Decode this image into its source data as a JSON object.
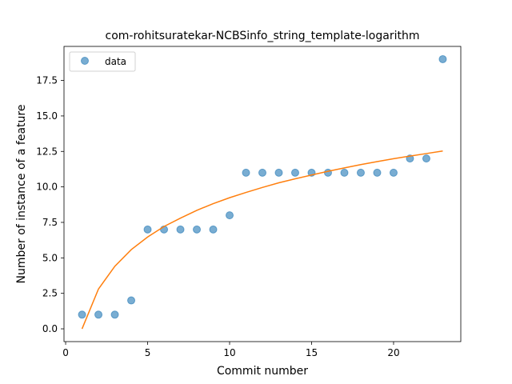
{
  "chart_data": {
    "type": "scatter",
    "title": "com-rohitsuratekar-NCBSinfo_string_template-logarithm",
    "xlabel": "Commit number",
    "ylabel": "Number of instance of a feature",
    "xlim": [
      -0.1,
      24.1
    ],
    "ylim": [
      -0.9,
      19.9
    ],
    "xticks": [
      0,
      5,
      10,
      15,
      20
    ],
    "yticks": [
      0.0,
      2.5,
      5.0,
      7.5,
      10.0,
      12.5,
      15.0,
      17.5
    ],
    "xtick_labels": [
      "0",
      "5",
      "10",
      "15",
      "20"
    ],
    "ytick_labels": [
      "0.0",
      "2.5",
      "5.0",
      "7.5",
      "10.0",
      "12.5",
      "15.0",
      "17.5"
    ],
    "grid": false,
    "legend": {
      "position": "top-left",
      "entries": [
        "data"
      ]
    },
    "series": [
      {
        "name": "data",
        "kind": "scatter",
        "color": "#1f77b4",
        "x": [
          1,
          2,
          3,
          4,
          5,
          6,
          7,
          8,
          9,
          10,
          11,
          12,
          13,
          14,
          15,
          16,
          17,
          18,
          19,
          20,
          21,
          22,
          23
        ],
        "y": [
          1,
          1,
          1,
          2,
          7,
          7,
          7,
          7,
          7,
          8,
          11,
          11,
          11,
          11,
          11,
          11,
          11,
          11,
          11,
          11,
          12,
          12,
          19
        ]
      },
      {
        "kind": "line",
        "color": "#ff7f0e",
        "x": [
          1,
          2,
          3,
          4,
          5,
          6,
          7,
          8,
          9,
          10,
          11,
          12,
          13,
          14,
          15,
          16,
          17,
          18,
          19,
          20,
          21,
          22,
          23
        ],
        "y": [
          0.0,
          2.8,
          4.41,
          5.58,
          6.47,
          7.21,
          7.8,
          8.35,
          8.82,
          9.24,
          9.61,
          9.96,
          10.29,
          10.57,
          10.84,
          11.1,
          11.34,
          11.57,
          11.78,
          11.99,
          12.17,
          12.35,
          12.53
        ]
      }
    ]
  }
}
